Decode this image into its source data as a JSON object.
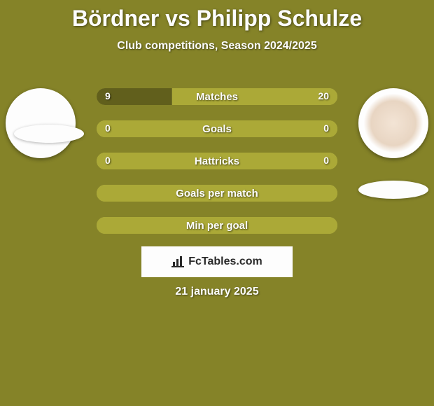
{
  "title": "Bördner vs Philipp Schulze",
  "subtitle": "Club competitions, Season 2024/2025",
  "date": "21 january 2025",
  "watermark": {
    "text": "FcTables.com"
  },
  "colors": {
    "background": "#858328",
    "left_fill": "#615f1c",
    "right_fill": "#aba937",
    "full_fill": "#aba937",
    "text": "#fdfdfd",
    "avatar_bg": "#fdfdfd"
  },
  "bars": [
    {
      "label": "Matches",
      "left": "9",
      "right": "20",
      "left_pct": 31,
      "right_pct": 69
    },
    {
      "label": "Goals",
      "left": "0",
      "right": "0",
      "left_pct": 100,
      "right_pct": 0
    },
    {
      "label": "Hattricks",
      "left": "0",
      "right": "0",
      "left_pct": 100,
      "right_pct": 0
    },
    {
      "label": "Goals per match",
      "left": "",
      "right": "",
      "left_pct": 100,
      "right_pct": 0
    },
    {
      "label": "Min per goal",
      "left": "",
      "right": "",
      "left_pct": 100,
      "right_pct": 0
    }
  ]
}
